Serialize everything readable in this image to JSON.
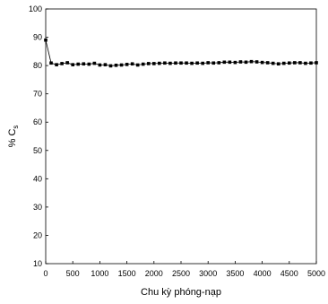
{
  "chart_data": {
    "type": "line",
    "xlabel": "Chu kỳ phóng-nạp",
    "ylabel_main": "% C",
    "ylabel_sub": "s",
    "xlim": [
      0,
      5000
    ],
    "ylim": [
      10,
      100
    ],
    "xticks": [
      0,
      500,
      1000,
      1500,
      2000,
      2500,
      3000,
      3500,
      4000,
      4500,
      5000
    ],
    "yticks": [
      10,
      20,
      30,
      40,
      50,
      60,
      70,
      80,
      90,
      100
    ],
    "grid": false,
    "series": [
      {
        "color": "#000000",
        "marker": "square",
        "x": [
          0,
          100,
          200,
          300,
          400,
          500,
          600,
          700,
          800,
          900,
          1000,
          1100,
          1200,
          1300,
          1400,
          1500,
          1600,
          1700,
          1800,
          1900,
          2000,
          2100,
          2200,
          2300,
          2400,
          2500,
          2600,
          2700,
          2800,
          2900,
          3000,
          3100,
          3200,
          3300,
          3400,
          3500,
          3600,
          3700,
          3800,
          3900,
          4000,
          4100,
          4200,
          4300,
          4400,
          4500,
          4600,
          4700,
          4800,
          4900,
          5000
        ],
        "y": [
          89,
          80.9,
          80.3,
          80.7,
          81.0,
          80.3,
          80.5,
          80.6,
          80.5,
          80.8,
          80.2,
          80.3,
          79.9,
          80.1,
          80.2,
          80.4,
          80.6,
          80.2,
          80.5,
          80.7,
          80.7,
          80.8,
          80.9,
          80.8,
          80.9,
          80.9,
          80.9,
          80.8,
          80.9,
          80.8,
          81.0,
          80.9,
          81.0,
          81.2,
          81.2,
          81.1,
          81.3,
          81.2,
          81.4,
          81.3,
          81.1,
          81.0,
          80.8,
          80.6,
          80.8,
          80.9,
          81.0,
          81.0,
          80.8,
          80.9,
          81.0
        ]
      }
    ]
  }
}
